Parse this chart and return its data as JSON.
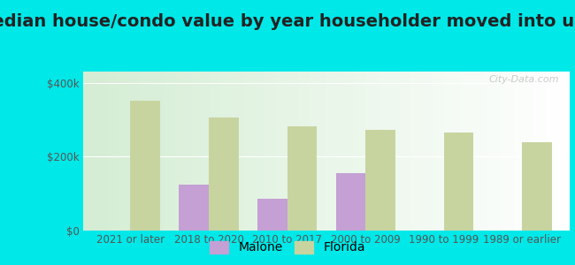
{
  "title": "Median house/condo value by year householder moved into unit",
  "categories": [
    "2021 or later",
    "2018 to 2020",
    "2010 to 2017",
    "2000 to 2009",
    "1990 to 1999",
    "1989 or earlier"
  ],
  "malone_values": [
    null,
    125000,
    85000,
    155000,
    null,
    null
  ],
  "florida_values": [
    350000,
    305000,
    283000,
    272000,
    265000,
    238000
  ],
  "malone_color": "#c4a0d4",
  "florida_color": "#c8d4a0",
  "background_color": "#00e8e8",
  "plot_bg_color": "#e8f5e0",
  "ylabel_ticks": [
    "$0",
    "$200k",
    "$400k"
  ],
  "ytick_values": [
    0,
    200000,
    400000
  ],
  "ylim": [
    0,
    430000
  ],
  "bar_width": 0.38,
  "title_fontsize": 14,
  "tick_fontsize": 8.5,
  "legend_fontsize": 10,
  "watermark": "City-Data.com"
}
